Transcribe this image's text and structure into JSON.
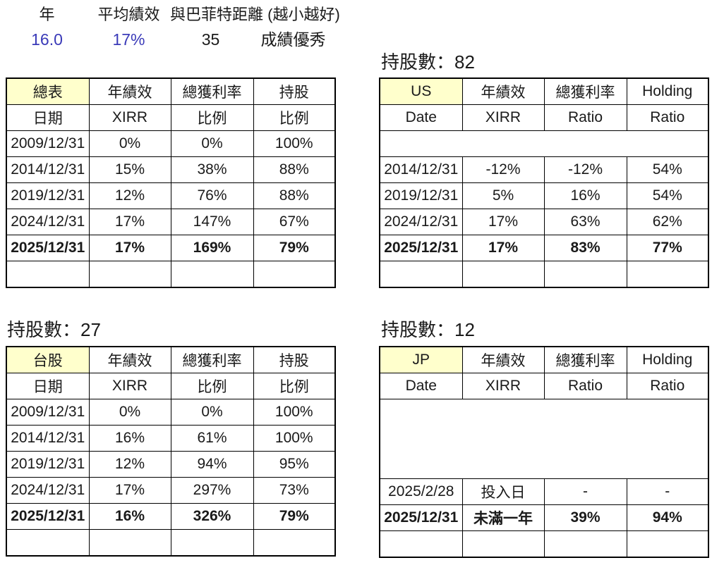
{
  "colors": {
    "accent_blue": "#3a3ab8",
    "header_fill": "#ffffcc",
    "border": "#000000",
    "text": "#1a1a1a"
  },
  "summary": {
    "labels": {
      "year": "年",
      "avg_perf": "平均績效",
      "buffett": "與巴菲特距離 (越小越好)"
    },
    "values": {
      "years": "16.0",
      "avg_perf": "17%",
      "buffett_distance": "35",
      "grade": "成績優秀"
    }
  },
  "tables": [
    {
      "key": "total",
      "heading": "",
      "header": [
        "總表",
        "年績效",
        "總獲利率",
        "持股"
      ],
      "subheader": [
        "日期",
        "XIRR",
        "比例",
        "比例"
      ],
      "rows": [
        {
          "type": "data",
          "cells": [
            "2009/12/31",
            "0%",
            "0%",
            "100%"
          ]
        },
        {
          "type": "data",
          "cells": [
            "2014/12/31",
            "15%",
            "38%",
            "88%"
          ]
        },
        {
          "type": "data",
          "cells": [
            "2019/12/31",
            "12%",
            "76%",
            "88%"
          ]
        },
        {
          "type": "data",
          "cells": [
            "2024/12/31",
            "17%",
            "147%",
            "67%"
          ]
        },
        {
          "type": "data",
          "bold": true,
          "cells": [
            "2025/12/31",
            "17%",
            "169%",
            "79%"
          ]
        },
        {
          "type": "empty",
          "cells": [
            "",
            "",
            "",
            ""
          ]
        }
      ]
    },
    {
      "key": "us",
      "heading": "持股數：82",
      "header": [
        "US",
        "年績效",
        "總獲利率",
        "Holding"
      ],
      "subheader": [
        "Date",
        "XIRR",
        "Ratio",
        "Ratio"
      ],
      "rows": [
        {
          "type": "merged",
          "span_rows": 1
        },
        {
          "type": "data",
          "cells": [
            "2014/12/31",
            "-12%",
            "-12%",
            "54%"
          ]
        },
        {
          "type": "data",
          "cells": [
            "2019/12/31",
            "5%",
            "16%",
            "54%"
          ]
        },
        {
          "type": "data",
          "cells": [
            "2024/12/31",
            "17%",
            "63%",
            "62%"
          ]
        },
        {
          "type": "data",
          "bold": true,
          "cells": [
            "2025/12/31",
            "17%",
            "83%",
            "77%"
          ]
        },
        {
          "type": "empty",
          "cells": [
            "",
            "",
            "",
            ""
          ]
        }
      ]
    },
    {
      "key": "tw",
      "heading": "持股數：27",
      "header": [
        "台股",
        "年績效",
        "總獲利率",
        "持股"
      ],
      "subheader": [
        "日期",
        "XIRR",
        "比例",
        "比例"
      ],
      "rows": [
        {
          "type": "data",
          "cells": [
            "2009/12/31",
            "0%",
            "0%",
            "100%"
          ]
        },
        {
          "type": "data",
          "cells": [
            "2014/12/31",
            "16%",
            "61%",
            "100%"
          ]
        },
        {
          "type": "data",
          "cells": [
            "2019/12/31",
            "12%",
            "94%",
            "95%"
          ]
        },
        {
          "type": "data",
          "cells": [
            "2024/12/31",
            "17%",
            "297%",
            "73%"
          ]
        },
        {
          "type": "data",
          "bold": true,
          "cells": [
            "2025/12/31",
            "16%",
            "326%",
            "79%"
          ]
        },
        {
          "type": "empty",
          "cells": [
            "",
            "",
            "",
            ""
          ]
        }
      ]
    },
    {
      "key": "jp",
      "heading": "持股數：12",
      "header": [
        "JP",
        "年績效",
        "總獲利率",
        "Holding"
      ],
      "subheader": [
        "Date",
        "XIRR",
        "Ratio",
        "Ratio"
      ],
      "rows": [
        {
          "type": "merged",
          "span_rows": 3
        },
        {
          "type": "data",
          "cells": [
            "2025/2/28",
            "投入日",
            "-",
            "-"
          ]
        },
        {
          "type": "data",
          "bold": true,
          "cells": [
            "2025/12/31",
            "未滿一年",
            "39%",
            "94%"
          ]
        },
        {
          "type": "empty",
          "cells": [
            "",
            "",
            "",
            ""
          ]
        }
      ]
    }
  ]
}
